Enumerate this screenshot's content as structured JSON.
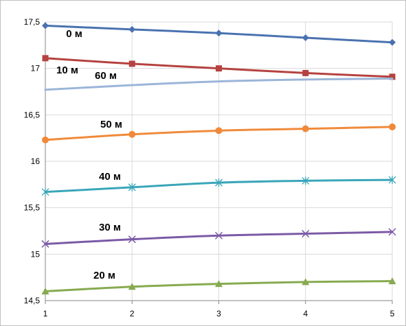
{
  "chart_data": {
    "type": "line",
    "title": "",
    "xlabel": "",
    "ylabel": "",
    "x": [
      1,
      2,
      3,
      4,
      5
    ],
    "x_ticks": [
      "1",
      "2",
      "3",
      "4",
      "5"
    ],
    "y_ticks": [
      "14,5",
      "15",
      "15,5",
      "16",
      "16,5",
      "17",
      "17,5"
    ],
    "y_tick_values": [
      14.5,
      15,
      15.5,
      16,
      16.5,
      17,
      17.5
    ],
    "ylim": [
      14.5,
      17.5
    ],
    "grid": true,
    "legend": "none",
    "series": [
      {
        "name": "0 м",
        "values": [
          17.46,
          17.42,
          17.38,
          17.33,
          17.28
        ],
        "color": "#4a72b0",
        "marker": "diamond"
      },
      {
        "name": "10 м",
        "values": [
          17.11,
          17.05,
          17.0,
          16.95,
          16.91
        ],
        "color": "#b5423f",
        "marker": "square"
      },
      {
        "name": "60 м",
        "values": [
          16.77,
          16.82,
          16.86,
          16.88,
          16.89
        ],
        "color": "#9bb5d8",
        "marker": "none"
      },
      {
        "name": "50 м",
        "values": [
          16.23,
          16.29,
          16.33,
          16.35,
          16.37
        ],
        "color": "#f08a3a",
        "marker": "circle"
      },
      {
        "name": "40 м",
        "values": [
          15.67,
          15.72,
          15.77,
          15.79,
          15.8
        ],
        "color": "#3aa6b9",
        "marker": "star"
      },
      {
        "name": "30 м",
        "values": [
          15.11,
          15.16,
          15.2,
          15.22,
          15.24
        ],
        "color": "#7b5aa6",
        "marker": "x"
      },
      {
        "name": "20 м",
        "values": [
          14.6,
          14.65,
          14.68,
          14.7,
          14.71
        ],
        "color": "#86aa4f",
        "marker": "triangle"
      }
    ]
  }
}
